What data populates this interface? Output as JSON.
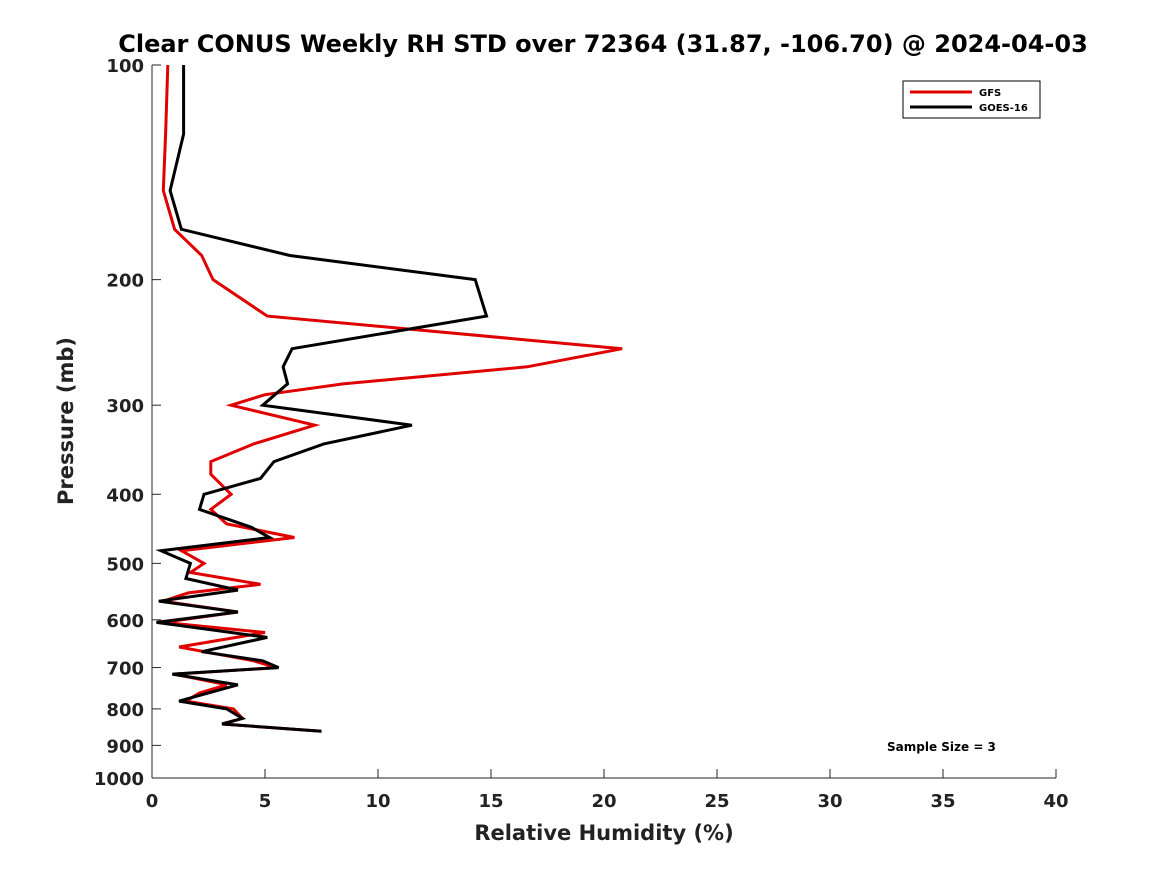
{
  "chart_data": {
    "type": "line",
    "title": "Clear CONUS Weekly RH STD over 72364 (31.87, -106.70) @ 2024-04-03",
    "xlabel": "Relative Humidity (%)",
    "ylabel": "Pressure (mb)",
    "xlim": [
      0,
      40
    ],
    "ylim": [
      1000,
      100
    ],
    "y_scale": "log-reversed",
    "x_ticks": [
      "0",
      "5",
      "10",
      "15",
      "20",
      "25",
      "30",
      "35",
      "40"
    ],
    "y_ticks": [
      "100",
      "200",
      "300",
      "400",
      "500",
      "600",
      "700",
      "800",
      "900",
      "1000"
    ],
    "grid": false,
    "legend_position": "top-right",
    "annotation": "Sample Size = 3",
    "series": [
      {
        "name": "GFS",
        "color": "#e00000",
        "points": [
          {
            "x": 0.7,
            "p": 100
          },
          {
            "x": 0.6,
            "p": 125
          },
          {
            "x": 0.5,
            "p": 150
          },
          {
            "x": 1.0,
            "p": 170
          },
          {
            "x": 2.2,
            "p": 185
          },
          {
            "x": 2.7,
            "p": 200
          },
          {
            "x": 5.1,
            "p": 225
          },
          {
            "x": 20.8,
            "p": 250
          },
          {
            "x": 16.6,
            "p": 265
          },
          {
            "x": 8.5,
            "p": 280
          },
          {
            "x": 5.0,
            "p": 290
          },
          {
            "x": 3.5,
            "p": 300
          },
          {
            "x": 7.2,
            "p": 320
          },
          {
            "x": 4.5,
            "p": 340
          },
          {
            "x": 2.6,
            "p": 360
          },
          {
            "x": 2.6,
            "p": 375
          },
          {
            "x": 3.5,
            "p": 400
          },
          {
            "x": 2.6,
            "p": 420
          },
          {
            "x": 3.3,
            "p": 440
          },
          {
            "x": 6.3,
            "p": 460
          },
          {
            "x": 1.3,
            "p": 480
          },
          {
            "x": 2.3,
            "p": 500
          },
          {
            "x": 1.7,
            "p": 515
          },
          {
            "x": 4.8,
            "p": 535
          },
          {
            "x": 1.6,
            "p": 550
          },
          {
            "x": 0.5,
            "p": 565
          },
          {
            "x": 3.8,
            "p": 585
          },
          {
            "x": 0.5,
            "p": 605
          },
          {
            "x": 5.0,
            "p": 625
          },
          {
            "x": 1.2,
            "p": 655
          },
          {
            "x": 4.5,
            "p": 685
          },
          {
            "x": 5.5,
            "p": 700
          },
          {
            "x": 1.0,
            "p": 715
          },
          {
            "x": 3.3,
            "p": 740
          },
          {
            "x": 2.1,
            "p": 760
          },
          {
            "x": 1.5,
            "p": 780
          },
          {
            "x": 3.6,
            "p": 800
          },
          {
            "x": 4.0,
            "p": 825
          },
          {
            "x": 3.1,
            "p": 840
          },
          {
            "x": 7.5,
            "p": 860
          }
        ]
      },
      {
        "name": "GOES-16",
        "color": "#000000",
        "points": [
          {
            "x": 1.4,
            "p": 100
          },
          {
            "x": 1.4,
            "p": 125
          },
          {
            "x": 0.8,
            "p": 150
          },
          {
            "x": 1.3,
            "p": 170
          },
          {
            "x": 6.1,
            "p": 185
          },
          {
            "x": 14.3,
            "p": 200
          },
          {
            "x": 14.8,
            "p": 225
          },
          {
            "x": 6.2,
            "p": 250
          },
          {
            "x": 5.8,
            "p": 265
          },
          {
            "x": 6.0,
            "p": 280
          },
          {
            "x": 4.9,
            "p": 300
          },
          {
            "x": 11.5,
            "p": 320
          },
          {
            "x": 7.6,
            "p": 340
          },
          {
            "x": 5.4,
            "p": 360
          },
          {
            "x": 4.8,
            "p": 380
          },
          {
            "x": 2.3,
            "p": 400
          },
          {
            "x": 2.1,
            "p": 420
          },
          {
            "x": 4.4,
            "p": 445
          },
          {
            "x": 5.2,
            "p": 460
          },
          {
            "x": 0.4,
            "p": 480
          },
          {
            "x": 1.7,
            "p": 500
          },
          {
            "x": 1.5,
            "p": 525
          },
          {
            "x": 3.8,
            "p": 545
          },
          {
            "x": 0.3,
            "p": 565
          },
          {
            "x": 3.8,
            "p": 585
          },
          {
            "x": 0.2,
            "p": 605
          },
          {
            "x": 5.1,
            "p": 635
          },
          {
            "x": 2.2,
            "p": 665
          },
          {
            "x": 4.9,
            "p": 685
          },
          {
            "x": 5.6,
            "p": 700
          },
          {
            "x": 0.9,
            "p": 715
          },
          {
            "x": 3.8,
            "p": 740
          },
          {
            "x": 1.2,
            "p": 780
          },
          {
            "x": 3.3,
            "p": 800
          },
          {
            "x": 4.0,
            "p": 825
          },
          {
            "x": 3.1,
            "p": 840
          },
          {
            "x": 7.5,
            "p": 860
          }
        ]
      }
    ]
  }
}
